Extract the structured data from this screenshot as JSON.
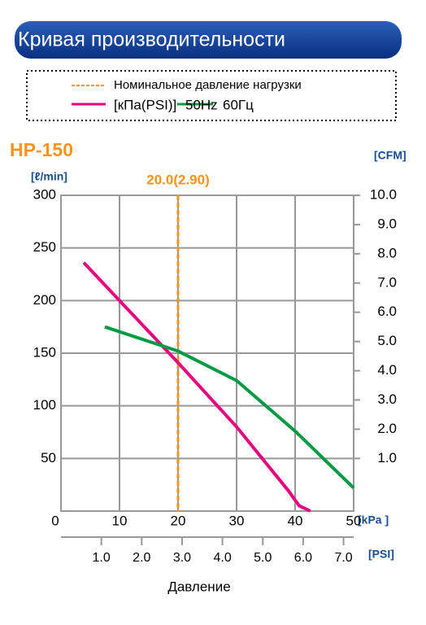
{
  "chart_data": {
    "type": "line",
    "title": "Кривая производительности",
    "model": "HP-150",
    "legend_title": "[кПа(PSI)]",
    "reference": {
      "name": "Номинальное давление нагрузки",
      "x": 20,
      "label": "20.0(2.90)",
      "color": "#f7941d"
    },
    "xlabel": "Давление",
    "ylabel": "[ℓ/min]",
    "y2label": "[CFM]",
    "xunit": "[kPa ]",
    "x2unit": "[PSI]",
    "xlim": [
      0,
      50
    ],
    "xticks": [
      0,
      10,
      20,
      30,
      40,
      50
    ],
    "x2lim": [
      0,
      7.25
    ],
    "x2ticks": [
      {
        "value": 1,
        "label": "1.0"
      },
      {
        "value": 2,
        "label": "2.0"
      },
      {
        "value": 3,
        "label": "3.0"
      },
      {
        "value": 4,
        "label": "4.0"
      },
      {
        "value": 5,
        "label": "5.0"
      },
      {
        "value": 6,
        "label": "6.0"
      },
      {
        "value": 7,
        "label": "7.0"
      }
    ],
    "ylim": [
      0,
      300
    ],
    "yticks": [
      50,
      100,
      150,
      200,
      250,
      300
    ],
    "y2lim": [
      -0.8,
      10
    ],
    "y2ticks": [
      {
        "value": 1,
        "label": "1.0"
      },
      {
        "value": 2,
        "label": "2.0"
      },
      {
        "value": 3,
        "label": "3.0"
      },
      {
        "value": 4,
        "label": "4.0"
      },
      {
        "value": 5,
        "label": "5.0"
      },
      {
        "value": 6,
        "label": "6.0"
      },
      {
        "value": 7,
        "label": "7.0"
      },
      {
        "value": 8,
        "label": "8.0"
      },
      {
        "value": 9,
        "label": "9.0"
      },
      {
        "value": 10,
        "label": "10.0"
      }
    ],
    "grid": true,
    "series": [
      {
        "name": "50Hz",
        "color": "#e6007e",
        "x": [
          3.9,
          10,
          20,
          30,
          38.9,
          40.7,
          42.6
        ],
        "values": [
          236,
          200,
          141,
          80,
          19,
          5,
          0
        ]
      },
      {
        "name": "60Гц",
        "color": "#009944",
        "x": [
          7.5,
          20,
          30,
          40,
          50
        ],
        "values": [
          175,
          152,
          124,
          76,
          22
        ]
      }
    ]
  }
}
